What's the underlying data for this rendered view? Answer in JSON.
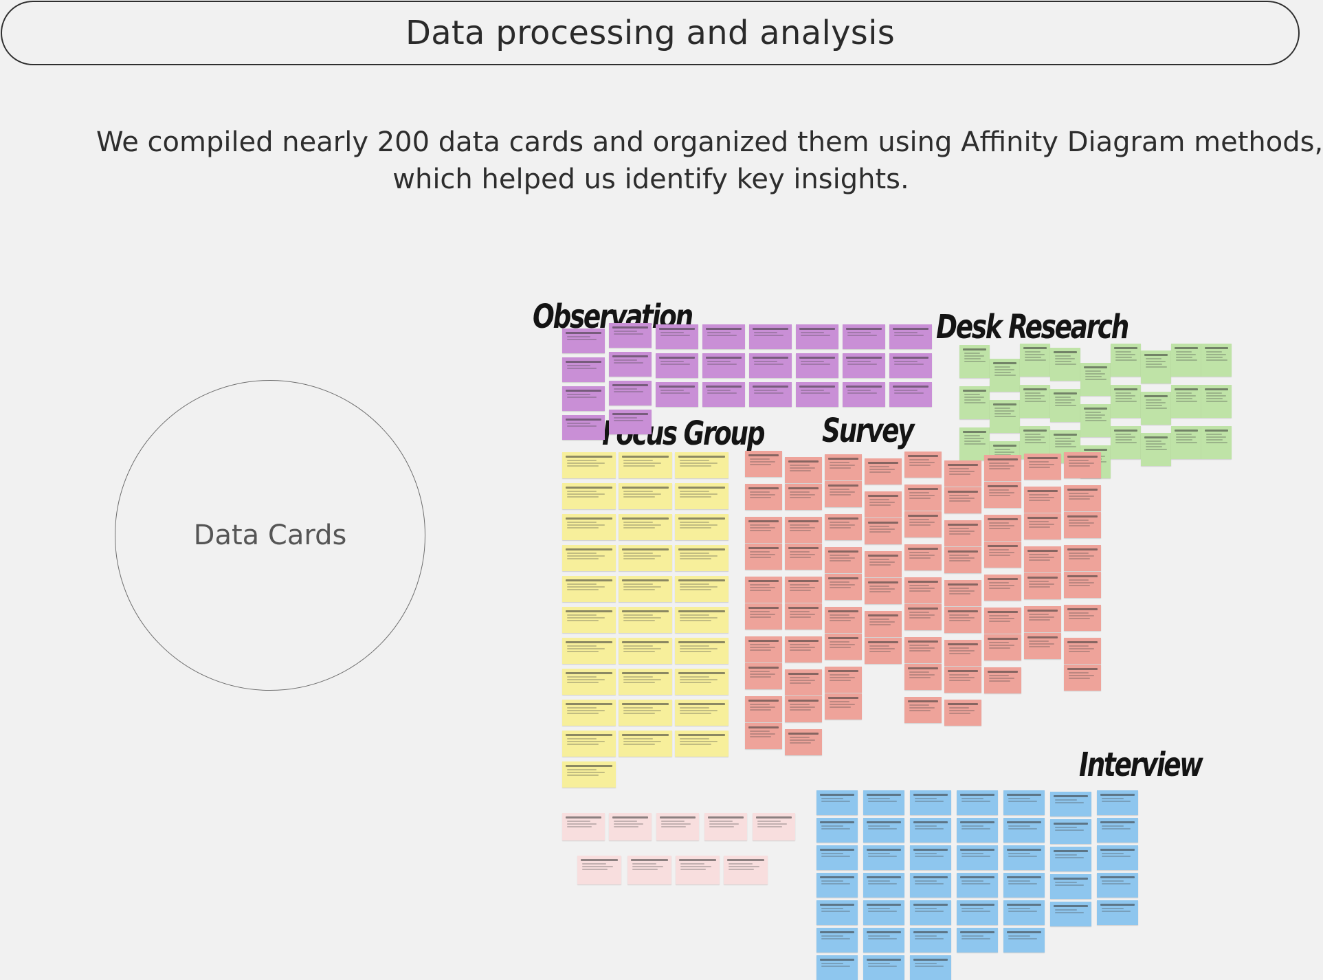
{
  "header": {
    "title": "Data processing and analysis"
  },
  "intro": {
    "line1": "We compiled nearly 200 data cards and organized them using Affinity Diagram methods,",
    "line2": "which helped us identify key insights."
  },
  "circle": {
    "label": "Data Cards"
  },
  "groups": {
    "observation": {
      "title": "Observation"
    },
    "desk_research": {
      "title": "Desk Research"
    },
    "focus_group": {
      "title": "Focus Group"
    },
    "survey": {
      "title": "Survey"
    },
    "interview": {
      "title": "Interview"
    }
  },
  "colors": {
    "background": "#f1f1f1",
    "observation": "#c98fd6",
    "desk_research": "#bfe3a7",
    "focus_group": "#f7ef9b",
    "survey": "#eea39a",
    "interview": "#8ec6ee",
    "pink": "#f8dede"
  }
}
